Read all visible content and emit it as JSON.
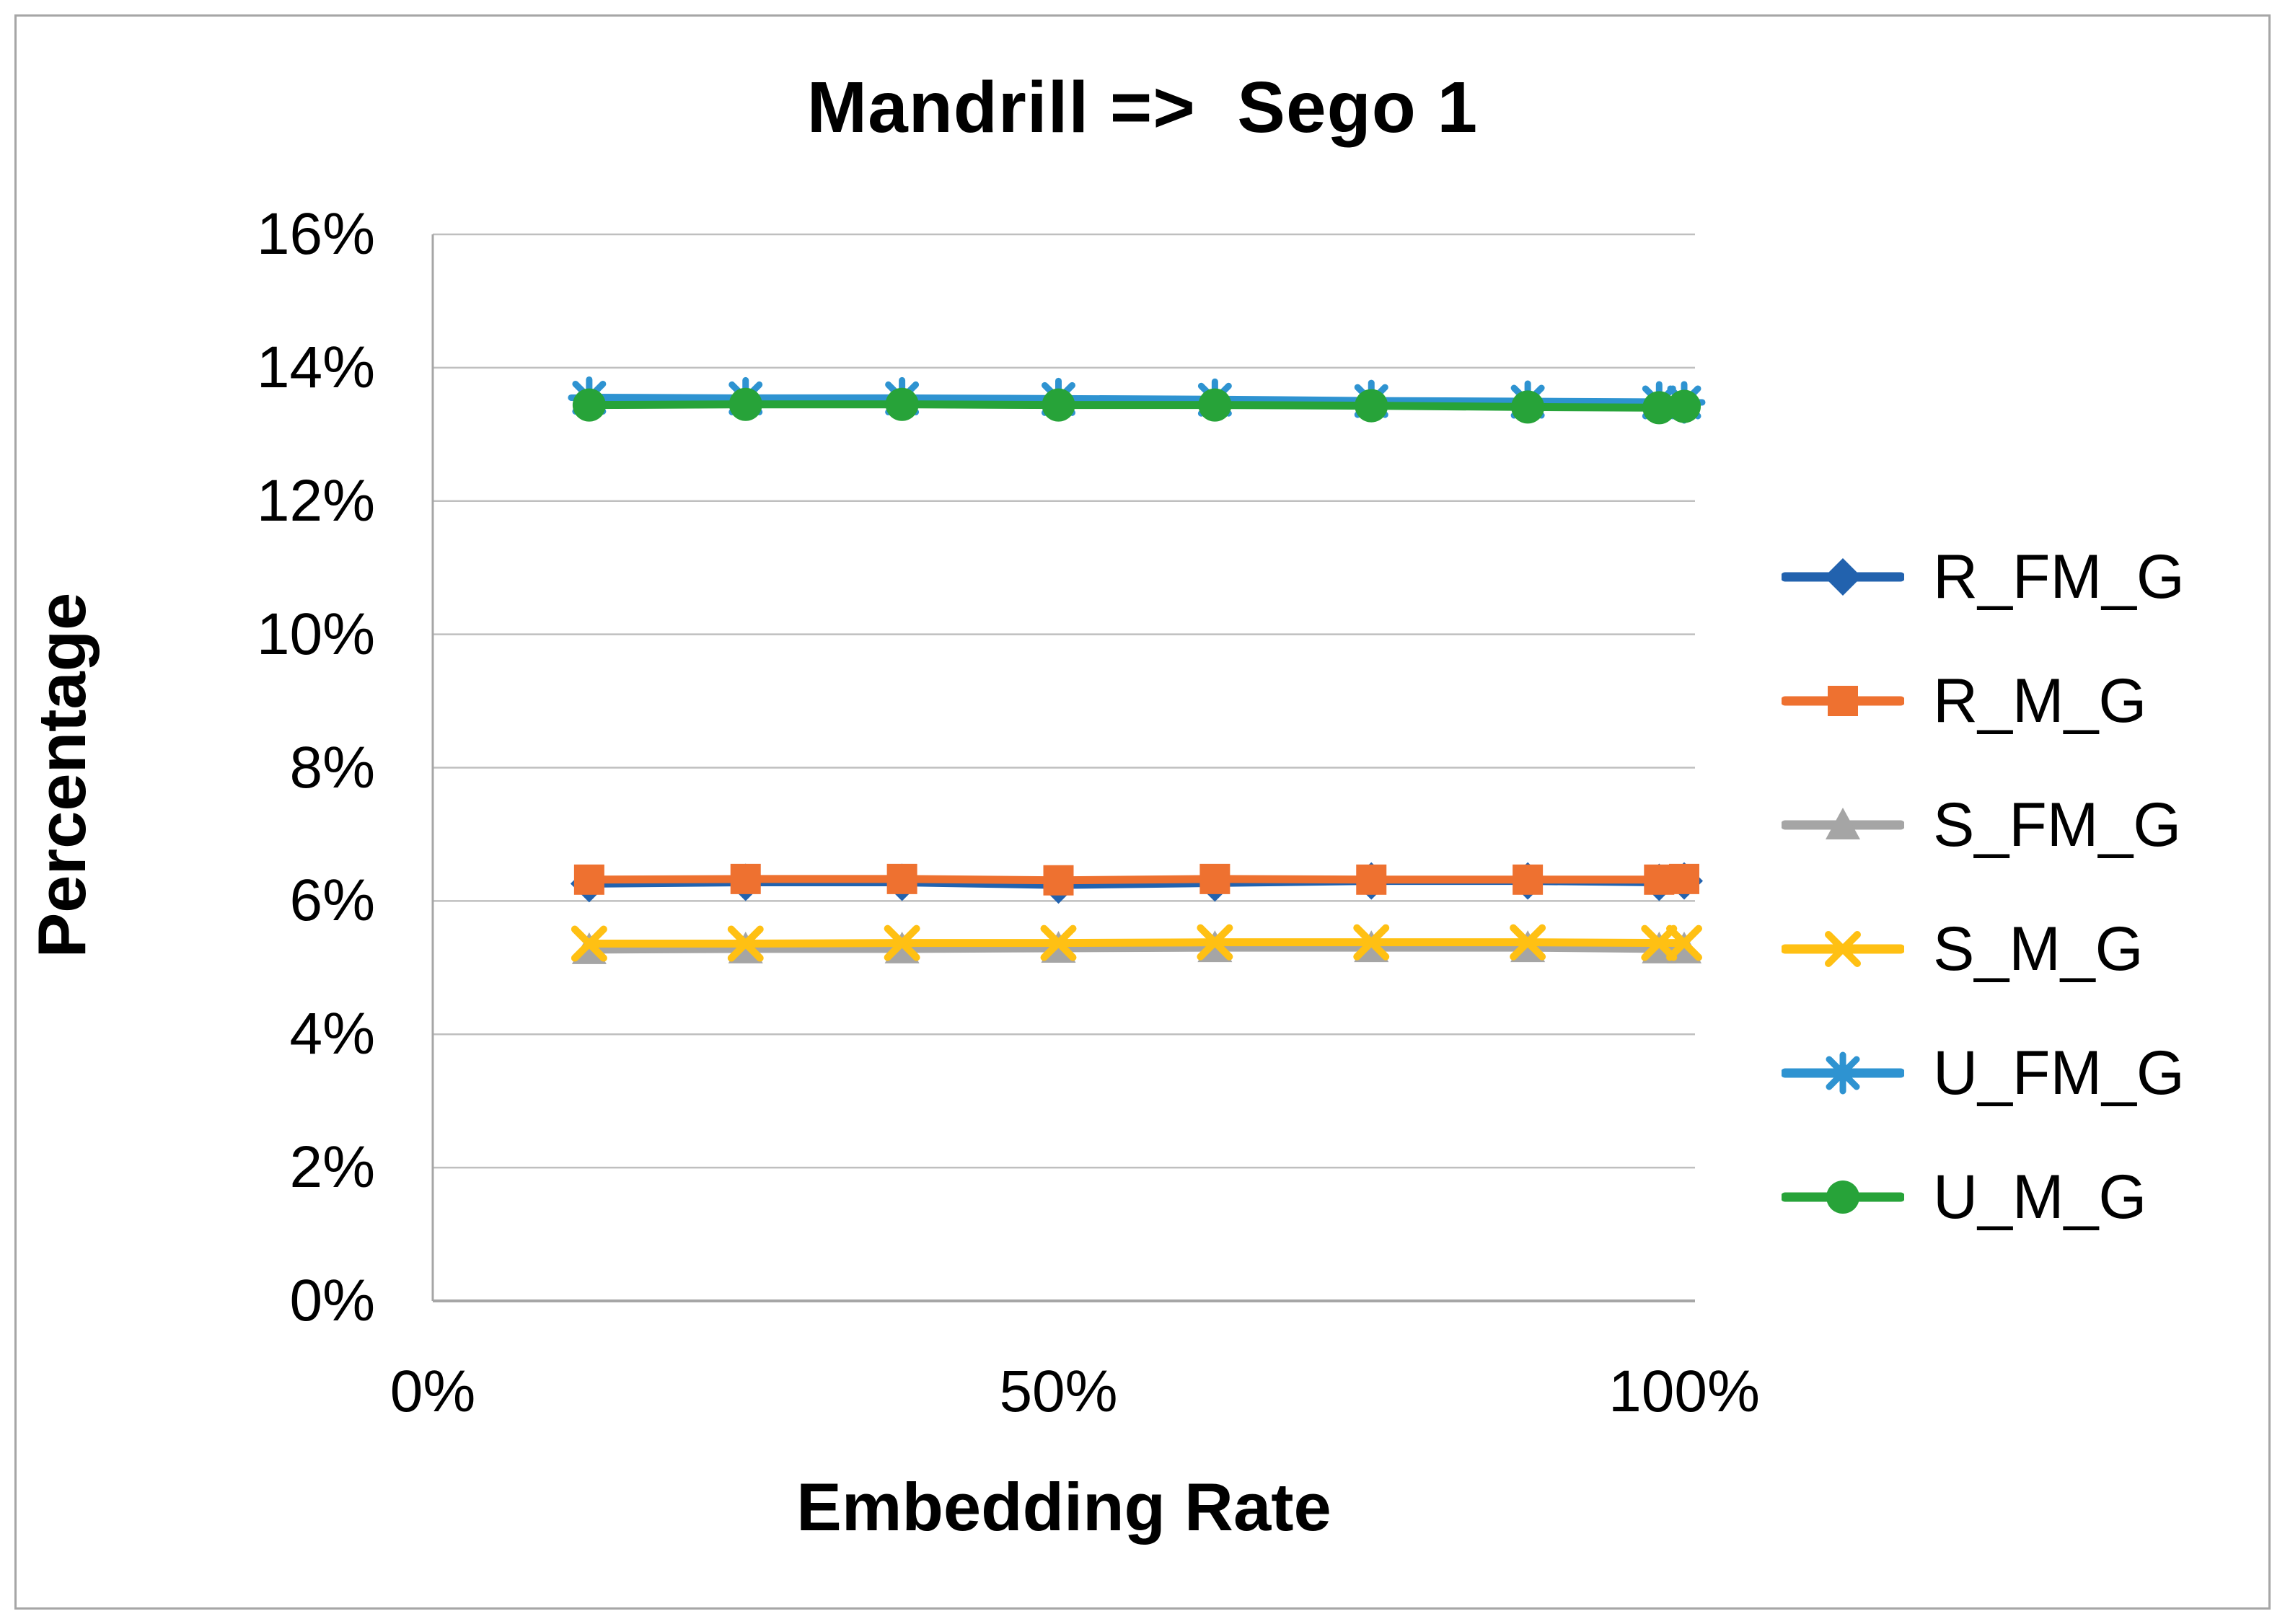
{
  "title": "Mandrill =>  Sego 1",
  "y_axis": {
    "title": "Percentage",
    "ticks": [
      {
        "label": "16%",
        "value": 16
      },
      {
        "label": "14%",
        "value": 14
      },
      {
        "label": "12%",
        "value": 12
      },
      {
        "label": "10%",
        "value": 10
      },
      {
        "label": "8%",
        "value": 8
      },
      {
        "label": "6%",
        "value": 6
      },
      {
        "label": "4%",
        "value": 4
      },
      {
        "label": "2%",
        "value": 2
      },
      {
        "label": "0%",
        "value": 0
      }
    ]
  },
  "x_axis": {
    "title": "Embedding Rate",
    "ticks": [
      {
        "label": "0%",
        "value": 0
      },
      {
        "label": "50%",
        "value": 50
      },
      {
        "label": "100%",
        "value": 100
      }
    ]
  },
  "colors": {
    "grid": "#bfbfbf",
    "axis": "#a6a6a6",
    "border": "#a6a6a6"
  },
  "chart_data": {
    "type": "line",
    "title": "Mandrill =>  Sego 1",
    "xlabel": "Embedding Rate",
    "ylabel": "Percentage",
    "xlim": [
      0,
      101
    ],
    "ylim": [
      0,
      16
    ],
    "grid": "horizontal",
    "legend_position": "right",
    "x": [
      12.5,
      25,
      37.5,
      50,
      62.5,
      75,
      87.5,
      98,
      100
    ],
    "series": [
      {
        "name": "R_FM_G",
        "color": "#2262ae",
        "marker": "diamond",
        "values": [
          6.26,
          6.28,
          6.28,
          6.24,
          6.27,
          6.3,
          6.3,
          6.28,
          6.3
        ]
      },
      {
        "name": "R_M_G",
        "color": "#ee7130",
        "marker": "square",
        "values": [
          6.32,
          6.33,
          6.33,
          6.31,
          6.33,
          6.32,
          6.32,
          6.32,
          6.33
        ]
      },
      {
        "name": "S_FM_G",
        "color": "#a5a5a5",
        "marker": "triangle",
        "values": [
          5.27,
          5.28,
          5.28,
          5.29,
          5.3,
          5.3,
          5.3,
          5.28,
          5.28
        ]
      },
      {
        "name": "S_M_G",
        "color": "#ffc013",
        "marker": "x",
        "values": [
          5.36,
          5.36,
          5.37,
          5.37,
          5.38,
          5.38,
          5.38,
          5.37,
          5.37
        ]
      },
      {
        "name": "U_FM_G",
        "color": "#2e93d1",
        "marker": "asterisk",
        "values": [
          13.55,
          13.54,
          13.54,
          13.53,
          13.52,
          13.5,
          13.49,
          13.48,
          13.48
        ]
      },
      {
        "name": "U_M_G",
        "color": "#27a339",
        "marker": "circle",
        "values": [
          13.44,
          13.45,
          13.45,
          13.44,
          13.44,
          13.43,
          13.41,
          13.4,
          13.42
        ]
      }
    ]
  }
}
